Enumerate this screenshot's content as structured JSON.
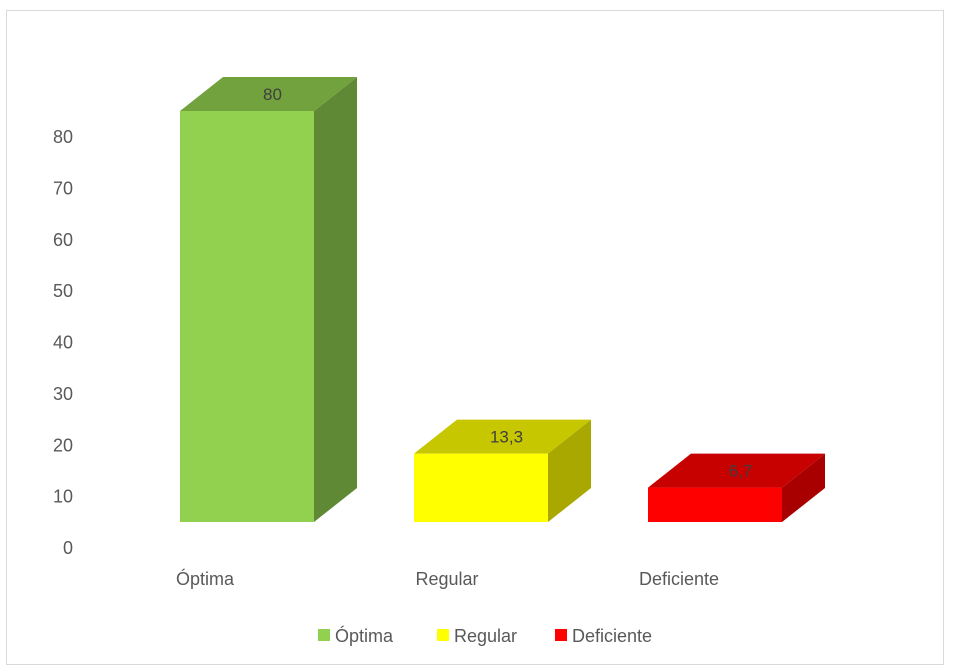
{
  "chart_data": {
    "type": "bar",
    "style": "3d-column",
    "categories": [
      "Óptima",
      "Regular",
      "Deficiente"
    ],
    "values": [
      80,
      13.3,
      6.7
    ],
    "data_labels": [
      "80",
      "13,3",
      "6,7"
    ],
    "colors": [
      "#92d050",
      "#ffff00",
      "#ff0000"
    ],
    "title": "",
    "xlabel": "",
    "ylabel": "",
    "ylim": [
      0,
      80
    ],
    "yticks": [
      "0",
      "10",
      "20",
      "30",
      "40",
      "50",
      "60",
      "70",
      "80"
    ],
    "grid": false,
    "legend": {
      "position": "bottom",
      "entries": [
        "Óptima",
        "Regular",
        "Deficiente"
      ]
    }
  }
}
